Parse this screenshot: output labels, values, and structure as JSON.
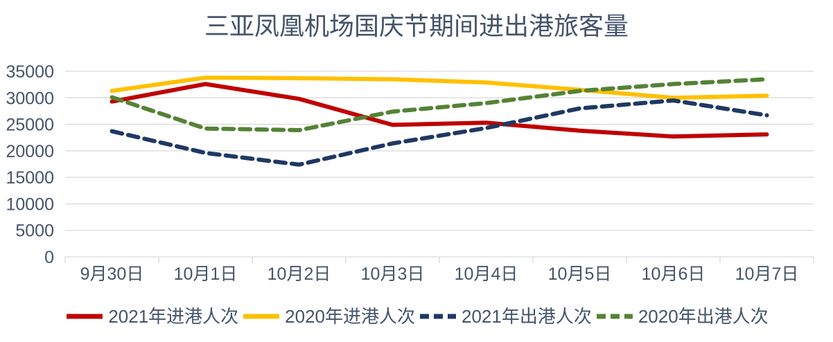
{
  "chart_data": {
    "type": "line",
    "title": "三亚凤凰机场国庆节期间进出港旅客量",
    "xlabel": "",
    "ylabel": "",
    "categories": [
      "9月30日",
      "10月1日",
      "10月2日",
      "10月3日",
      "10月4日",
      "10月5日",
      "10月6日",
      "10月7日"
    ],
    "series": [
      {
        "name": "2021年进港人次",
        "color": "#C00000",
        "style": "solid",
        "values": [
          29300,
          32600,
          29800,
          24900,
          25300,
          23800,
          22700,
          23100
        ]
      },
      {
        "name": "2020年进港人次",
        "color": "#FFC000",
        "style": "solid",
        "values": [
          31300,
          33800,
          33700,
          33500,
          32900,
          31500,
          30000,
          30400
        ]
      },
      {
        "name": "2021年出港人次",
        "color": "#1F3864",
        "style": "dashed",
        "values": [
          23700,
          19600,
          17400,
          21400,
          24300,
          28000,
          29500,
          26700
        ]
      },
      {
        "name": "2020年出港人次",
        "color": "#548235",
        "style": "dashed",
        "values": [
          30100,
          24200,
          23900,
          27400,
          29000,
          31300,
          32600,
          33500
        ]
      }
    ],
    "ylim": [
      0,
      35000
    ],
    "ytick_step": 5000,
    "yticks": [
      "0",
      "5000",
      "10000",
      "15000",
      "20000",
      "25000",
      "30000",
      "35000"
    ],
    "grid": true,
    "legend_position": "bottom",
    "text_color": "#44546A",
    "grid_color": "#D9D9D9"
  }
}
